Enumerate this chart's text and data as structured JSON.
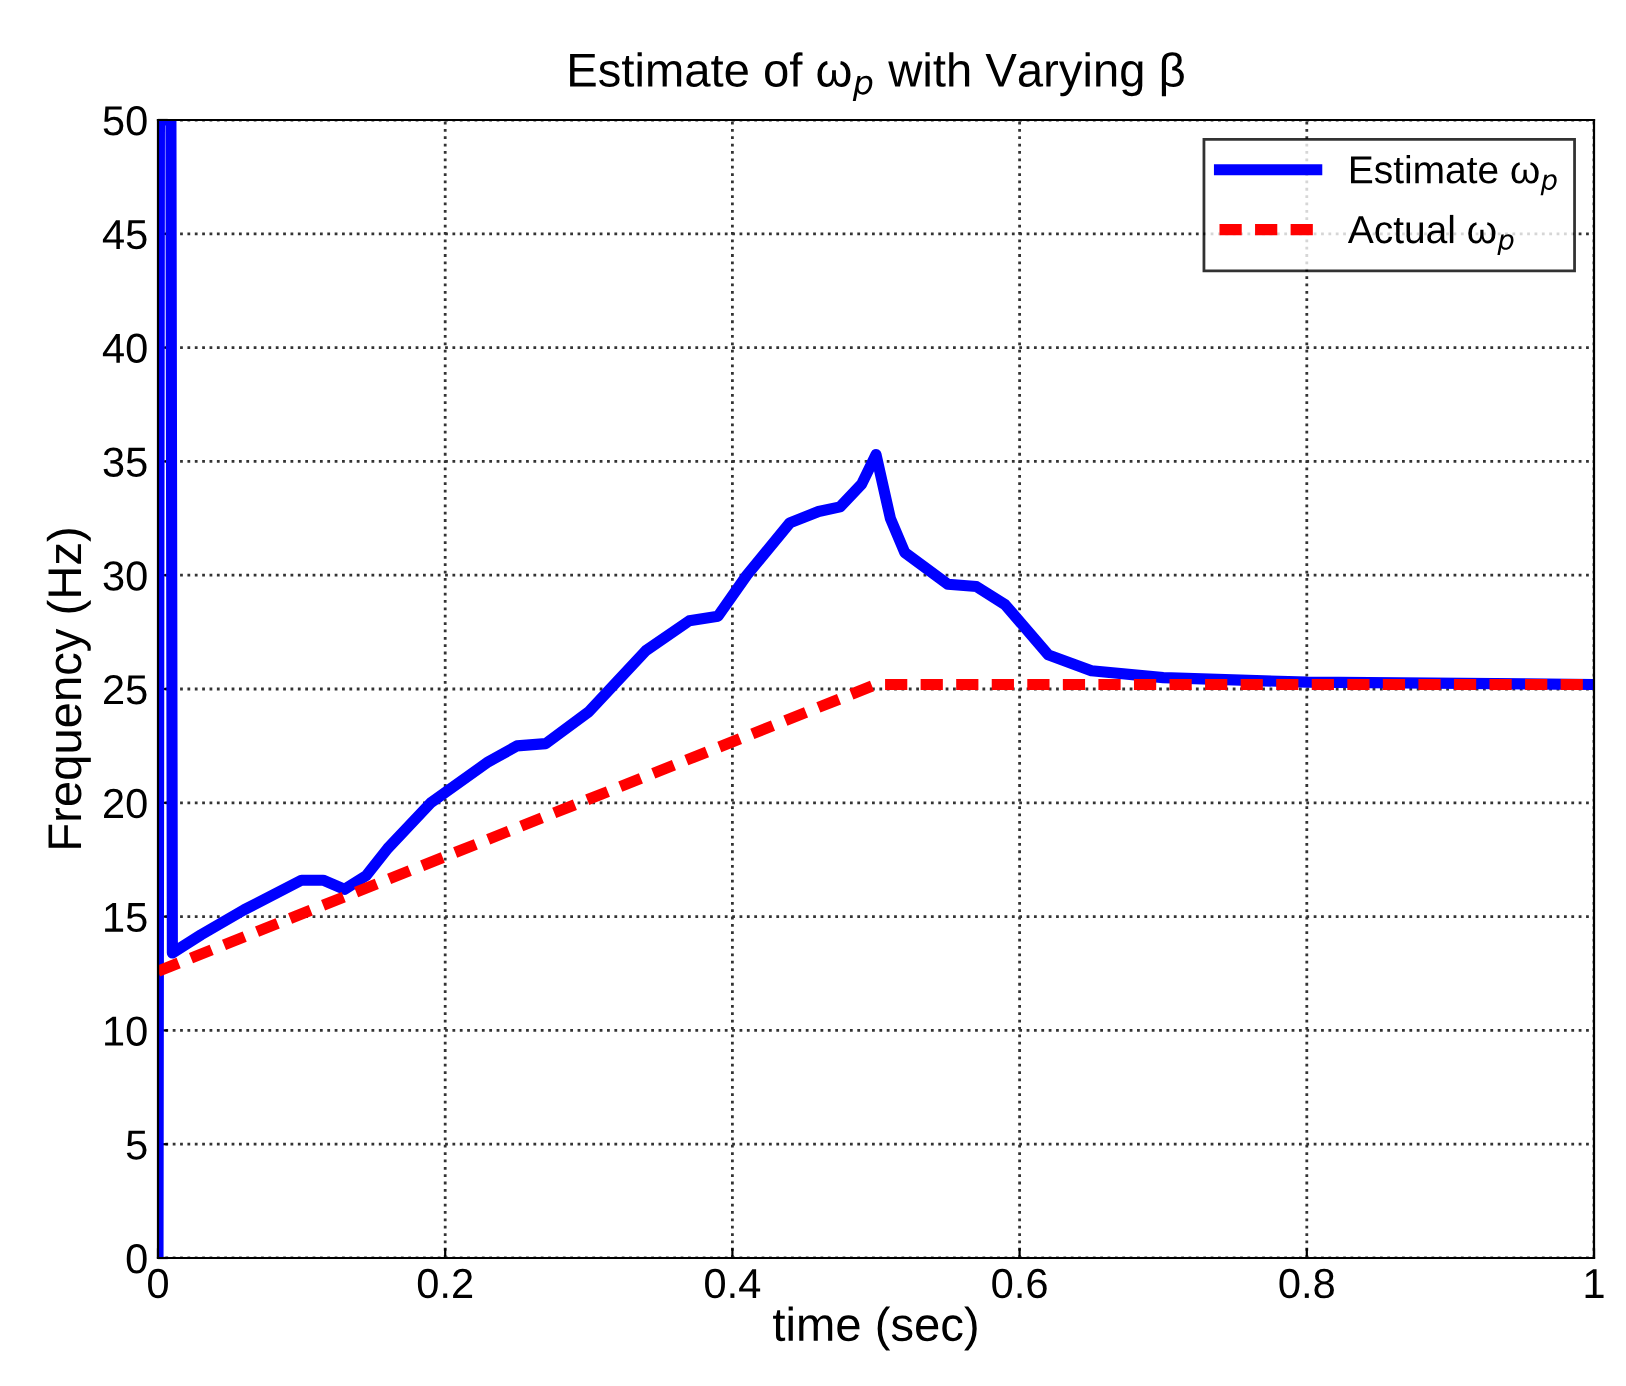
{
  "chart_data": {
    "type": "line",
    "title": "Estimate of ω$_{p}$ with Varying β",
    "xlabel": "time (sec)",
    "ylabel": "Frequency (Hz)",
    "xlim": [
      0,
      1
    ],
    "ylim": [
      0,
      50
    ],
    "xticks": [
      0,
      0.2,
      0.4,
      0.6,
      0.8,
      1
    ],
    "yticks": [
      0,
      5,
      10,
      15,
      20,
      25,
      30,
      35,
      40,
      45,
      50
    ],
    "grid": true,
    "legend": "top right",
    "series": [
      {
        "name": "Estimate ω$_{p}$",
        "color": "#0000ff",
        "line_style": "solid",
        "x": [
          0,
          0.001,
          0.009,
          0.01,
          0.03,
          0.06,
          0.1,
          0.115,
          0.13,
          0.145,
          0.16,
          0.19,
          0.23,
          0.25,
          0.27,
          0.3,
          0.34,
          0.37,
          0.39,
          0.41,
          0.44,
          0.46,
          0.475,
          0.49,
          0.5,
          0.51,
          0.52,
          0.55,
          0.57,
          0.59,
          0.62,
          0.65,
          0.7,
          0.8,
          1
        ],
        "values": [
          0,
          50,
          50,
          13.4,
          14.2,
          15.3,
          16.6,
          16.6,
          16.2,
          16.8,
          18,
          20,
          21.8,
          22.5,
          22.6,
          24,
          26.7,
          28,
          28.2,
          30,
          32.3,
          32.8,
          33,
          34,
          35.3,
          32.5,
          31,
          29.6,
          29.5,
          28.7,
          26.5,
          25.8,
          25.5,
          25.3,
          25.2
        ]
      },
      {
        "name": "Actual ω$_{p}$",
        "color": "#ff0000",
        "line_style": "dashed",
        "x": [
          0,
          0.5,
          1
        ],
        "values": [
          12.6,
          25.2,
          25.2
        ]
      }
    ]
  }
}
